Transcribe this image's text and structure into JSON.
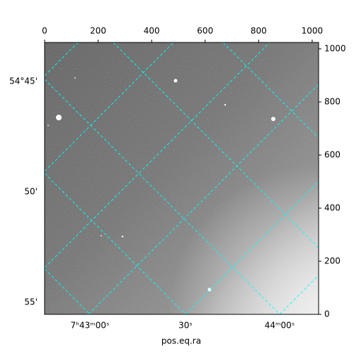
{
  "chart_data": {
    "type": "image",
    "xlabel": "pos.eq.ra",
    "xlim": [
      0,
      1024
    ],
    "xticks": [
      0,
      200,
      400,
      600,
      800,
      1000
    ],
    "ylim": [
      0,
      1024
    ],
    "yticks": [
      0,
      200,
      400,
      600,
      800,
      1000
    ],
    "ra_ticks": [
      "7ʰ43ᵐ00ˢ",
      "30ˢ",
      "44ᵐ00ˢ"
    ],
    "dec_ticks": [
      "54°45'",
      "50'",
      "55'"
    ],
    "grid_color": "#00ffff"
  }
}
